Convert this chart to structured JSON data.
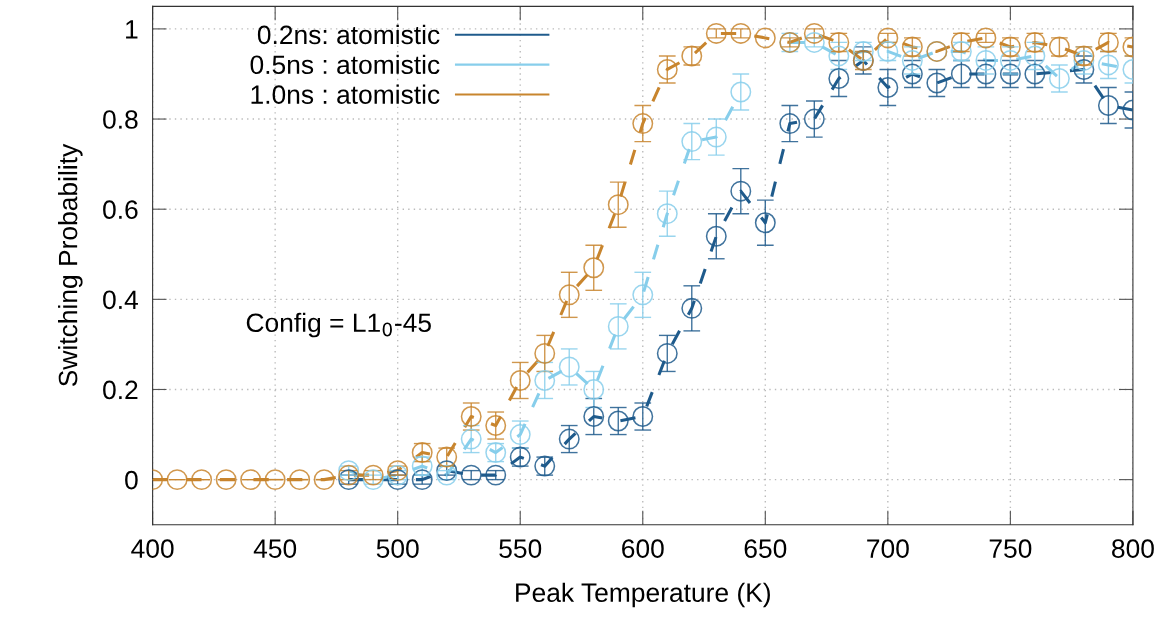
{
  "chart_data": {
    "type": "line",
    "xlabel": "Peak Temperature (K)",
    "ylabel": "Switching Probability",
    "annotations": [
      "Config = L1$_{0}$-45"
    ],
    "xlim": [
      400,
      800
    ],
    "xticks": [
      400,
      450,
      500,
      550,
      600,
      650,
      700,
      750,
      800
    ],
    "ylim": [
      -0.1,
      1.05
    ],
    "yticks": [
      0,
      0.2,
      0.4,
      0.6,
      0.8,
      1
    ],
    "grid": true,
    "legend": "top left",
    "marker": "circle",
    "line_style": "dashed",
    "series": [
      {
        "name": "0.2ns: atomistic",
        "color": "#1f5b8c",
        "x": [
          480,
          500,
          510,
          520,
          530,
          540,
          550,
          560,
          570,
          580,
          590,
          600,
          610,
          620,
          630,
          640,
          650,
          660,
          670,
          680,
          690,
          700,
          710,
          720,
          730,
          740,
          750,
          760,
          780,
          790,
          800
        ],
        "values": [
          0,
          0,
          0,
          0.02,
          0.01,
          0.01,
          0.05,
          0.03,
          0.09,
          0.14,
          0.13,
          0.14,
          0.28,
          0.38,
          0.54,
          0.64,
          0.57,
          0.79,
          0.8,
          0.89,
          0.93,
          0.87,
          0.9,
          0.88,
          0.9,
          0.9,
          0.9,
          0.9,
          0.91,
          0.83,
          0.82
        ],
        "errors": [
          0.01,
          0.01,
          0.01,
          0.01,
          0.01,
          0.01,
          0.02,
          0.02,
          0.03,
          0.04,
          0.03,
          0.03,
          0.04,
          0.05,
          0.05,
          0.05,
          0.05,
          0.04,
          0.04,
          0.04,
          0.03,
          0.04,
          0.03,
          0.03,
          0.03,
          0.03,
          0.03,
          0.03,
          0.03,
          0.04,
          0.04
        ]
      },
      {
        "name": "0.5ns : atomistic",
        "color": "#87ceeb",
        "x": [
          480,
          490,
          500,
          510,
          520,
          530,
          540,
          550,
          560,
          570,
          580,
          590,
          600,
          610,
          620,
          630,
          640,
          650,
          660,
          670,
          680,
          690,
          700,
          710,
          720,
          730,
          740,
          750,
          760,
          770,
          780,
          790,
          800
        ],
        "values": [
          0.02,
          0,
          0.01,
          0.03,
          0.01,
          0.09,
          0.06,
          0.1,
          0.22,
          0.25,
          0.2,
          0.34,
          0.41,
          0.59,
          0.75,
          0.76,
          0.86,
          null,
          0.97,
          0.97,
          0.94,
          0.95,
          0.95,
          0.93,
          0.95,
          0.95,
          0.93,
          0.93,
          0.94,
          0.89,
          0.93,
          0.92,
          0.91
        ],
        "errors": [
          0.01,
          0.01,
          0.01,
          0.02,
          0.01,
          0.03,
          0.02,
          0.03,
          0.04,
          0.04,
          0.04,
          0.05,
          0.05,
          0.05,
          0.04,
          0.04,
          0.04,
          null,
          0.02,
          0.01,
          0.03,
          0.02,
          0.02,
          0.03,
          null,
          0.02,
          0.03,
          0.03,
          0.03,
          0.03,
          0.03,
          0.03,
          0.03
        ]
      },
      {
        "name": "1.0ns : atomistic",
        "color": "#c8852e",
        "x": [
          400,
          410,
          420,
          430,
          440,
          450,
          460,
          470,
          480,
          490,
          500,
          510,
          520,
          530,
          540,
          550,
          560,
          570,
          580,
          590,
          600,
          610,
          620,
          630,
          640,
          650,
          660,
          670,
          680,
          690,
          700,
          710,
          720,
          730,
          740,
          750,
          760,
          770,
          780,
          790,
          800
        ],
        "values": [
          0,
          0,
          0,
          0,
          0,
          0,
          0,
          0,
          0.01,
          0.01,
          0.02,
          0.06,
          0.05,
          0.14,
          0.12,
          0.22,
          0.28,
          0.41,
          0.47,
          0.61,
          0.79,
          0.91,
          0.94,
          0.99,
          0.99,
          0.98,
          0.97,
          0.99,
          0.97,
          0.93,
          0.98,
          0.96,
          0.95,
          0.97,
          0.98,
          0.96,
          0.97,
          0.96,
          0.94,
          0.97,
          0.96
        ],
        "errors": [
          0,
          0,
          0,
          0,
          0,
          0,
          0,
          0,
          0.01,
          0.01,
          0.01,
          0.02,
          0.02,
          0.03,
          0.03,
          0.04,
          0.04,
          0.05,
          0.05,
          0.05,
          0.04,
          0.03,
          0.02,
          0.01,
          0.01,
          null,
          0.01,
          0.01,
          0.02,
          0.02,
          0.01,
          0.02,
          null,
          0.02,
          0.01,
          0.02,
          0.02,
          0.02,
          0.02,
          0.02,
          0.02
        ]
      }
    ]
  }
}
